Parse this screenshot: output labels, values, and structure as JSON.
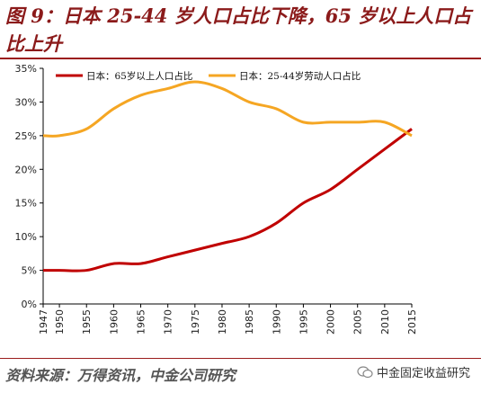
{
  "title": "图 9：日本 25-44 岁人口占比下降，65 岁以上人口占比上升",
  "source": "资料来源：万得资讯，中金公司研究",
  "watermark": "中金固定收益研究",
  "chart_data": {
    "type": "line",
    "x": [
      1947,
      1950,
      1955,
      1960,
      1965,
      1970,
      1975,
      1980,
      1985,
      1990,
      1995,
      2000,
      2005,
      2010,
      2015
    ],
    "series": [
      {
        "name": "日本：65岁以上人口占比",
        "color": "#c00000",
        "values": [
          5.0,
          5.0,
          5.0,
          6.0,
          6.0,
          7.0,
          8.0,
          9.0,
          10.0,
          12.0,
          15.0,
          17.0,
          20.0,
          23.0,
          26.0
        ]
      },
      {
        "name": "日本：25-44岁劳动人口占比",
        "color": "#f5a623",
        "values": [
          25.0,
          25.0,
          26.0,
          29.0,
          31.0,
          32.0,
          33.0,
          32.0,
          30.0,
          29.0,
          27.0,
          27.0,
          27.0,
          27.0,
          25.0
        ]
      }
    ],
    "ylim": [
      0,
      35
    ],
    "yticks": [
      "0%",
      "5%",
      "10%",
      "15%",
      "20%",
      "25%",
      "30%",
      "35%"
    ],
    "xticks": [
      "1947",
      "1950",
      "1955",
      "1960",
      "1965",
      "1970",
      "1975",
      "1980",
      "1985",
      "1990",
      "1995",
      "2000",
      "2005",
      "2010",
      "2015"
    ],
    "grid": false,
    "legend": "top"
  }
}
